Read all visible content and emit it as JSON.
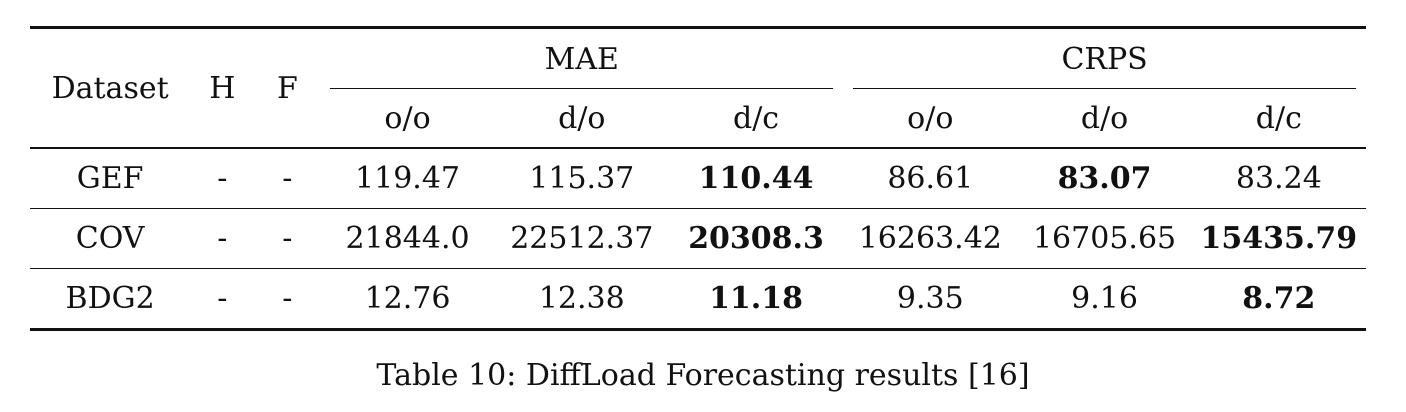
{
  "table": {
    "header": {
      "dataset": "Dataset",
      "h": "H",
      "f": "F",
      "groups": [
        {
          "label": "MAE",
          "subs": [
            "o/o",
            "d/o",
            "d/c"
          ]
        },
        {
          "label": "CRPS",
          "subs": [
            "o/o",
            "d/o",
            "d/c"
          ]
        }
      ]
    },
    "rows": [
      {
        "dataset": "GEF",
        "h": "-",
        "f": "-",
        "mae": [
          "119.47",
          "115.37",
          "110.44"
        ],
        "crps": [
          "86.61",
          "83.07",
          "83.24"
        ],
        "best_mae": 2,
        "best_crps": 1
      },
      {
        "dataset": "COV",
        "h": "-",
        "f": "-",
        "mae": [
          "21844.0",
          "22512.37",
          "20308.3"
        ],
        "crps": [
          "16263.42",
          "16705.65",
          "15435.79"
        ],
        "best_mae": 2,
        "best_crps": 2
      },
      {
        "dataset": "BDG2",
        "h": "-",
        "f": "-",
        "mae": [
          "12.76",
          "12.38",
          "11.18"
        ],
        "crps": [
          "9.35",
          "9.16",
          "8.72"
        ],
        "best_mae": 2,
        "best_crps": 2
      }
    ]
  },
  "caption": "Table 10: DiffLoad Forecasting results [16]"
}
